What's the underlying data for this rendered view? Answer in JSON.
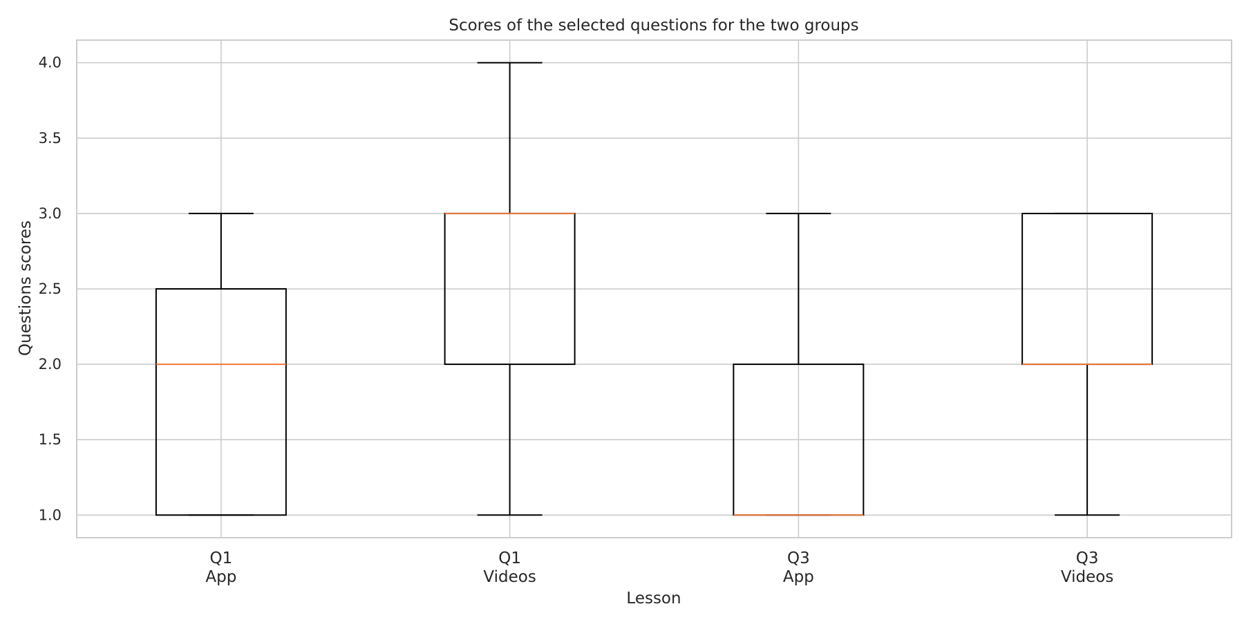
{
  "chart_data": {
    "type": "boxplot",
    "title": "Scores of the selected questions for the two groups",
    "xlabel": "Lesson",
    "ylabel": "Questions scores",
    "ylim": [
      0.85,
      4.15
    ],
    "yticks": [
      1.0,
      1.5,
      2.0,
      2.5,
      3.0,
      3.5,
      4.0
    ],
    "grid": true,
    "categories": [
      {
        "line1": "Q1",
        "line2": "App"
      },
      {
        "line1": "Q1",
        "line2": "Videos"
      },
      {
        "line1": "Q3",
        "line2": "App"
      },
      {
        "line1": "Q3",
        "line2": "Videos"
      }
    ],
    "boxes": [
      {
        "whisker_low": 1.0,
        "q1": 1.0,
        "median": 2.0,
        "q3": 2.5,
        "whisker_high": 3.0
      },
      {
        "whisker_low": 1.0,
        "q1": 2.0,
        "median": 3.0,
        "q3": 3.0,
        "whisker_high": 4.0
      },
      {
        "whisker_low": 1.0,
        "q1": 1.0,
        "median": 1.0,
        "q3": 2.0,
        "whisker_high": 3.0
      },
      {
        "whisker_low": 1.0,
        "q1": 2.0,
        "median": 2.0,
        "q3": 3.0,
        "whisker_high": 3.0
      }
    ],
    "colors": {
      "box": "#000000",
      "median": "#f07a3a",
      "grid": "#cccccc",
      "frame": "#cccccc"
    }
  }
}
